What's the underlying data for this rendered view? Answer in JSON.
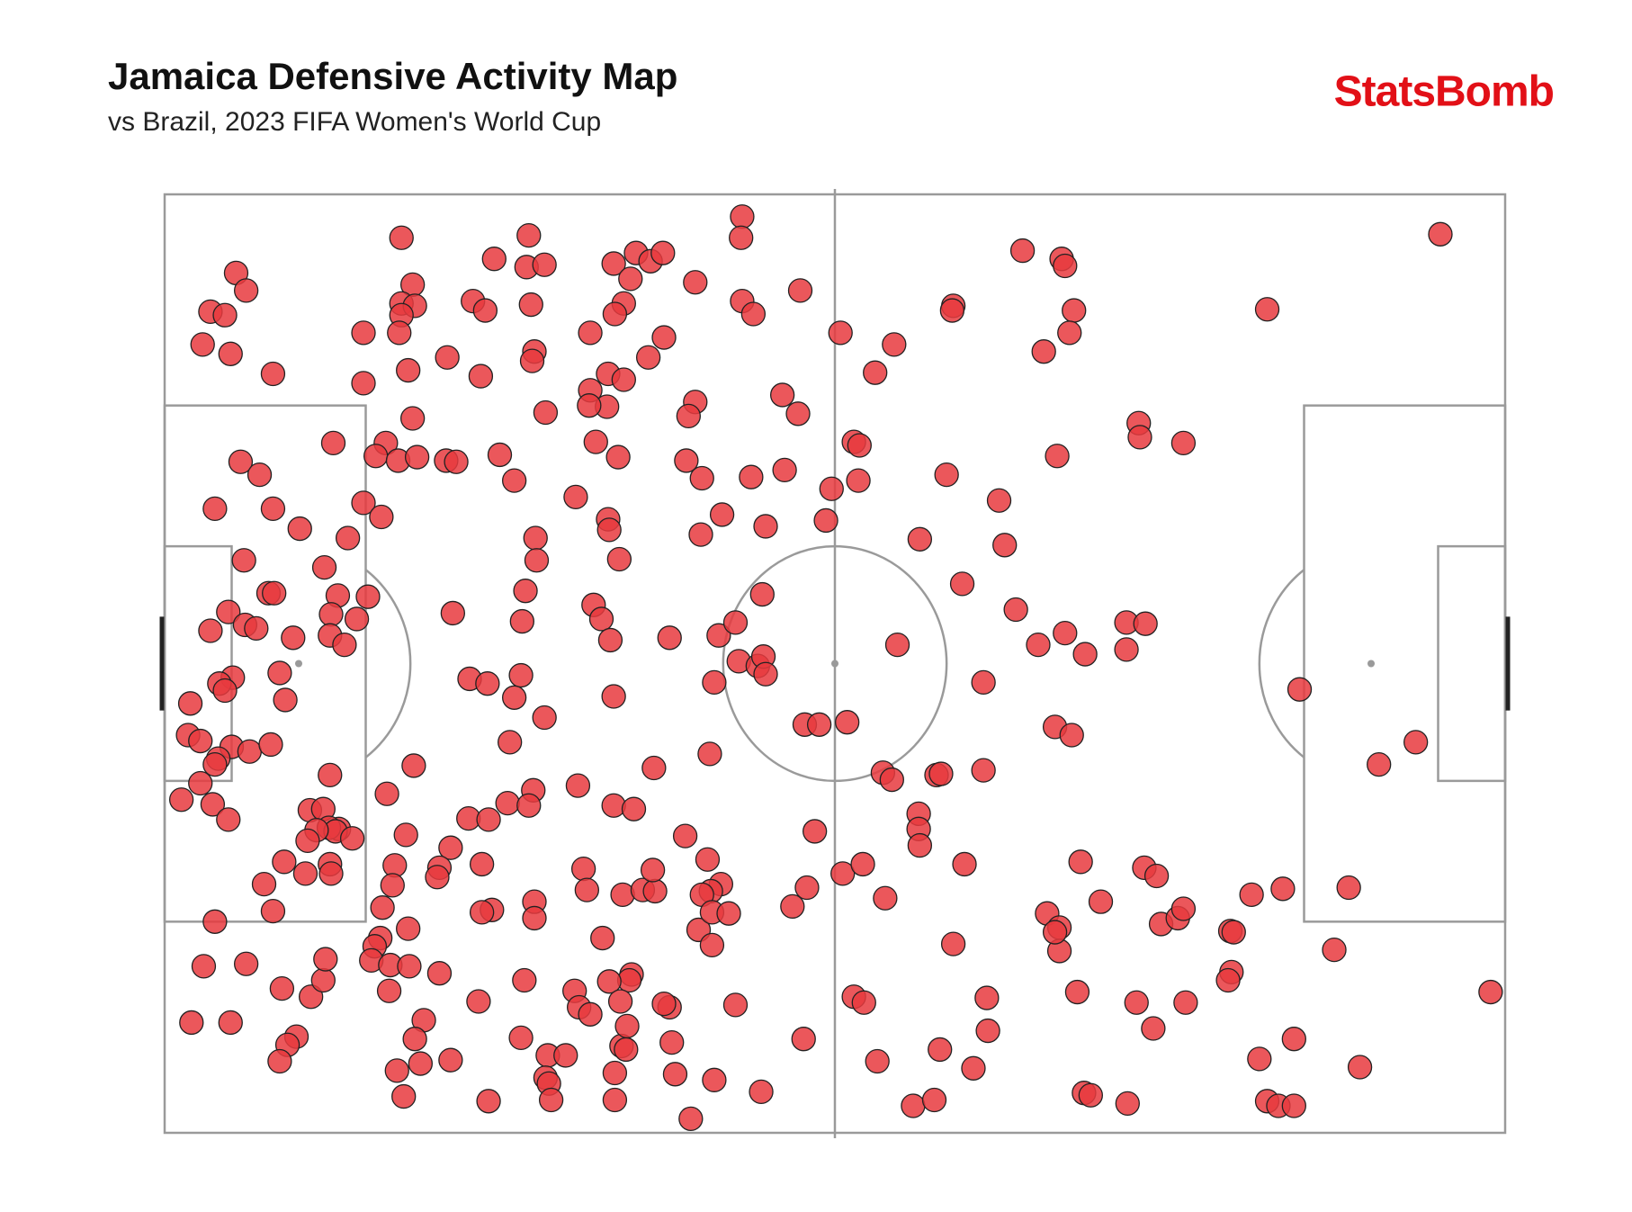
{
  "chart_data": {
    "type": "scatter",
    "title": "Jamaica Defensive Activity Map",
    "subtitle": "vs Brazil, 2023 FIFA Women's World Cup",
    "logo": "StatsBomb",
    "color": "#e8393e",
    "xlim": [
      0,
      120
    ],
    "ylim": [
      80,
      0
    ],
    "x": [
      6.4,
      7.3,
      4.1,
      5.4,
      3.4,
      5.9,
      9.7,
      21.2,
      22.2,
      21.2,
      22.4,
      21.2,
      21.0,
      17.8,
      17.8,
      21.8,
      25.3,
      28.3,
      27.6,
      28.7,
      29.5,
      32.6,
      32.4,
      34.0,
      32.8,
      33.1,
      32.9,
      34.1,
      40.2,
      42.2,
      43.5,
      44.6,
      41.7,
      41.1,
      40.3,
      38.1,
      44.7,
      43.3,
      39.7,
      41.1,
      38.1,
      39.6,
      38.0,
      47.5,
      51.7,
      51.6,
      51.7,
      52.7,
      56.9,
      60.5,
      65.3,
      63.6,
      47.5,
      46.9,
      55.3,
      56.7,
      22.2,
      15.1,
      19.8,
      18.9,
      20.9,
      22.6,
      25.2,
      26.1,
      30.0,
      31.3,
      36.8,
      38.6,
      40.6,
      46.7,
      48.1,
      52.5,
      55.5,
      59.7,
      61.7,
      62.2,
      62.1,
      59.2,
      53.8,
      49.9,
      48.0,
      6.8,
      8.5,
      4.5,
      9.7,
      12.1,
      17.8,
      19.4,
      16.4,
      14.3,
      7.1,
      39.7,
      39.8,
      33.2,
      33.3,
      40.7,
      32.3,
      38.4,
      39.1,
      39.9,
      32.0,
      25.8,
      15.5,
      18.2,
      17.2,
      14.9,
      9.3,
      9.8,
      5.7,
      7.2,
      8.2,
      4.1,
      11.5,
      14.8,
      16.1,
      10.3,
      6.1,
      4.9,
      5.4,
      2.3,
      10.8,
      27.3,
      28.9,
      31.9,
      31.3,
      34.0,
      40.2,
      45.2,
      49.6,
      51.1,
      53.5,
      51.4,
      53.1,
      53.6,
      53.8,
      49.2,
      57.3,
      58.6,
      61.1,
      65.6,
      73.3,
      2.1,
      3.2,
      6.0,
      7.6,
      9.5,
      4.8,
      4.5,
      3.2,
      1.5,
      4.3,
      5.7,
      14.8,
      13.0,
      14.2,
      15.6,
      14.7,
      15.3,
      16.8,
      13.6,
      12.8,
      10.7,
      12.6,
      14.8,
      14.9,
      8.9,
      9.7,
      4.5,
      22.3,
      19.9,
      30.9,
      33.0,
      37.0,
      30.7,
      32.6,
      40.2,
      42.0,
      43.8,
      48.8,
      46.6,
      48.6,
      49.8,
      48.9,
      48.1,
      47.8,
      49.0,
      50.5,
      49.0,
      27.2,
      29.0,
      21.6,
      25.6,
      24.6,
      24.4,
      28.4,
      20.6,
      20.4,
      19.5,
      21.8,
      19.3,
      18.8,
      18.5,
      20.2,
      21.9,
      20.1,
      24.6,
      28.1,
      29.3,
      28.4,
      33.1,
      33.1,
      37.5,
      37.8,
      41.0,
      42.8,
      43.9,
      43.7,
      39.2,
      41.8,
      41.6,
      39.8,
      40.8,
      36.7,
      37.1,
      38.1,
      32.2,
      40.9,
      41.4,
      41.3,
      45.2,
      44.7,
      45.4,
      51.1,
      57.2,
      56.2,
      57.5,
      58.2,
      60.7,
      62.5,
      64.5,
      64.3,
      65.1,
      67.5,
      67.5,
      67.6,
      69.1,
      69.5,
      73.3,
      71.6,
      70.6,
      61.7,
      62.6,
      73.6,
      73.7,
      69.4,
      72.4,
      63.8,
      67.0,
      68.9,
      3.5,
      7.3,
      2.4,
      5.9,
      10.5,
      13.1,
      14.2,
      14.4,
      11.8,
      11.0,
      10.3,
      23.2,
      22.4,
      20.8,
      22.9,
      21.4,
      25.6,
      31.9,
      34.3,
      35.9,
      34.1,
      34.4,
      34.6,
      29.0,
      40.3,
      40.3,
      45.7,
      47.1,
      49.2,
      53.4,
      70.0,
      74.7,
      75.2,
      67.6,
      71.4,
      76.2,
      78.2,
      80.6,
      82.4,
      86.1,
      87.8,
      86.1,
      79.9,
      87.2,
      87.3,
      91.2,
      76.8,
      80.3,
      80.6,
      70.6,
      70.5,
      81.4,
      81.0,
      78.7,
      98.7,
      114.2,
      101.6,
      112.0,
      108.7,
      79.7,
      81.2,
      82.0,
      83.8,
      79.0,
      80.1,
      80.1,
      87.7,
      88.8,
      89.2,
      90.7,
      91.2,
      97.3,
      100.1,
      106.0,
      95.4,
      95.7,
      95.5,
      95.2,
      104.7,
      81.7,
      87.0,
      88.5,
      91.4,
      101.1,
      98.0,
      107.0,
      118.7,
      82.3,
      82.9,
      86.2,
      98.7,
      99.7,
      101.1,
      79.7
    ],
    "values": [
      6.7,
      8.2,
      10.0,
      10.3,
      12.8,
      13.6,
      15.3,
      3.7,
      7.7,
      9.3,
      9.5,
      10.3,
      11.8,
      11.8,
      16.1,
      15.0,
      13.9,
      15.5,
      9.1,
      9.9,
      5.5,
      3.5,
      6.2,
      6.0,
      9.4,
      13.4,
      14.2,
      18.6,
      5.9,
      5.0,
      5.7,
      5.0,
      7.2,
      9.3,
      10.2,
      11.8,
      12.2,
      13.9,
      15.3,
      15.8,
      16.7,
      18.1,
      18.0,
      7.5,
      1.9,
      3.7,
      9.1,
      10.2,
      8.2,
      11.8,
      12.8,
      15.2,
      17.7,
      18.9,
      17.1,
      18.7,
      19.1,
      21.2,
      21.2,
      22.3,
      22.7,
      22.4,
      22.7,
      22.8,
      22.2,
      24.4,
      25.8,
      21.1,
      22.4,
      22.7,
      24.2,
      24.1,
      23.5,
      25.1,
      21.1,
      21.4,
      24.4,
      27.8,
      28.3,
      27.3,
      29.0,
      22.8,
      23.9,
      26.8,
      26.8,
      28.5,
      26.3,
      27.5,
      29.3,
      31.8,
      31.2,
      27.7,
      28.6,
      29.3,
      31.2,
      31.1,
      33.8,
      35.0,
      36.2,
      38.0,
      36.4,
      35.7,
      34.2,
      34.3,
      36.2,
      35.8,
      34.0,
      34.0,
      35.6,
      36.7,
      37.0,
      37.2,
      37.8,
      37.6,
      38.4,
      40.8,
      41.2,
      41.7,
      42.3,
      43.4,
      43.1,
      41.3,
      41.7,
      41.0,
      42.9,
      44.6,
      42.8,
      37.8,
      37.6,
      36.5,
      34.1,
      39.8,
      40.2,
      39.4,
      40.9,
      41.6,
      45.2,
      45.2,
      45.0,
      38.4,
      41.6,
      46.1,
      46.6,
      47.1,
      47.5,
      46.9,
      48.1,
      48.6,
      50.2,
      51.6,
      52.0,
      53.3,
      49.5,
      52.5,
      52.4,
      54.1,
      54.0,
      54.3,
      54.9,
      54.2,
      55.1,
      56.9,
      57.9,
      57.1,
      57.9,
      58.8,
      61.1,
      62.0,
      48.7,
      51.1,
      46.7,
      50.8,
      50.4,
      51.9,
      52.1,
      52.1,
      52.4,
      48.9,
      47.7,
      54.7,
      56.7,
      58.8,
      59.4,
      59.7,
      62.7,
      61.2,
      61.3,
      64.0,
      53.2,
      53.3,
      54.6,
      55.7,
      57.4,
      58.2,
      57.1,
      57.2,
      58.9,
      60.8,
      62.6,
      63.4,
      64.1,
      65.3,
      65.7,
      65.8,
      67.9,
      66.4,
      68.8,
      61.0,
      61.2,
      60.3,
      61.7,
      57.5,
      59.3,
      59.7,
      59.3,
      59.4,
      57.6,
      63.4,
      66.5,
      67.0,
      67.1,
      68.8,
      67.9,
      69.3,
      69.9,
      67.0,
      72.6,
      70.9,
      72.9,
      69.3,
      69.0,
      72.3,
      69.1,
      72.0,
      60.7,
      59.1,
      54.3,
      57.9,
      57.1,
      60.0,
      49.3,
      49.9,
      52.8,
      54.1,
      55.5,
      49.5,
      49.4,
      49.1,
      57.1,
      63.9,
      68.4,
      68.9,
      68.5,
      71.3,
      72.9,
      74.5,
      73.9,
      77.7,
      77.2,
      65.8,
      65.6,
      70.6,
      70.6,
      67.7,
      68.4,
      67.0,
      65.2,
      71.8,
      72.5,
      73.9,
      70.4,
      72.0,
      74.7,
      74.1,
      76.9,
      73.8,
      71.9,
      73.4,
      73.4,
      75.3,
      75.8,
      77.2,
      77.3,
      74.9,
      77.2,
      75.0,
      78.8,
      75.5,
      76.5,
      23.9,
      26.1,
      29.9,
      29.4,
      33.2,
      35.4,
      38.4,
      37.4,
      39.2,
      36.5,
      36.6,
      38.8,
      22.3,
      19.5,
      20.7,
      21.2,
      4.8,
      5.5,
      6.1,
      9.5,
      9.9,
      9.9,
      11.8,
      13.4,
      9.8,
      3.4,
      42.2,
      46.7,
      48.6,
      45.4,
      46.1,
      56.9,
      60.3,
      61.3,
      62.5,
      64.5,
      57.4,
      58.1,
      62.2,
      61.7,
      60.9,
      59.7,
      59.2,
      59.1,
      62.8,
      62.9,
      66.3,
      67.0,
      64.4,
      68.0,
      68.9,
      71.1,
      68.9,
      72.0,
      73.7,
      74.4,
      68.0,
      76.6,
      76.8,
      77.5,
      77.3,
      77.7,
      77.7,
      62.9
    ]
  }
}
